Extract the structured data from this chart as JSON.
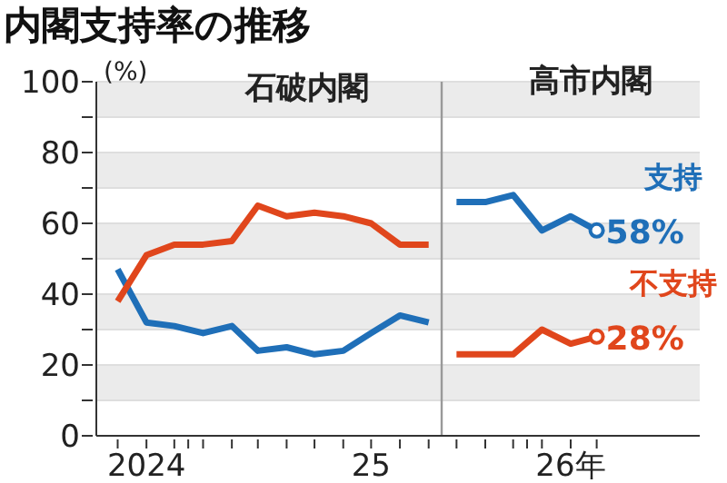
{
  "chart_data": {
    "type": "line",
    "title": "内閣支持率の推移",
    "ylabel": "(%)",
    "annotations": [
      "石破内閣",
      "高市内閣"
    ],
    "series": [
      {
        "color": "#1f6fb8",
        "x": [
          "2024-10",
          "2024-11",
          "2024-12",
          "2025-01",
          "2025-02",
          "2025-03",
          "2025-04",
          "2025-05",
          "2025-06",
          "2025-07",
          "2025-08",
          "2025-09"
        ],
        "values": [
          47,
          32,
          31,
          29,
          31,
          24,
          25,
          23,
          24,
          29,
          34,
          32
        ]
      },
      {
        "color": "#e0461c",
        "x": [
          "2024-10",
          "2024-11",
          "2024-12",
          "2025-01",
          "2025-02",
          "2025-03",
          "2025-04",
          "2025-05",
          "2025-06",
          "2025-07",
          "2025-08",
          "2025-09"
        ],
        "values": [
          38,
          51,
          54,
          54,
          55,
          65,
          62,
          63,
          62,
          60,
          54,
          54
        ]
      },
      {
        "name": "支持",
        "color": "#1f6fb8",
        "x": [
          "2025-10",
          "2025-11",
          "2025-12",
          "2026-01",
          "2026-02",
          "2026-03"
        ],
        "values": [
          66,
          66,
          68,
          58,
          62,
          58
        ],
        "value_labels": [
          null,
          null,
          null,
          null,
          null,
          "58%"
        ]
      },
      {
        "name": "不支持",
        "color": "#e0461c",
        "x": [
          "2025-10",
          "2025-11",
          "2025-12",
          "2026-01",
          "2026-02",
          "2026-03"
        ],
        "values": [
          23,
          23,
          23,
          30,
          26,
          28
        ],
        "value_labels": [
          null,
          null,
          null,
          null,
          null,
          "28%"
        ]
      }
    ],
    "xlim": [
      "2024-09-08",
      "2026-06-20"
    ],
    "xticks": [
      {
        "value": "2024-10",
        "label": null
      },
      {
        "value": "2024-11",
        "label": "2024"
      },
      {
        "value": "2024-12",
        "label": null
      },
      {
        "value": "2024-12-16",
        "label": null
      },
      {
        "value": "2025-01",
        "label": null
      },
      {
        "value": "2025-02",
        "label": null
      },
      {
        "value": "2025-03",
        "label": null
      },
      {
        "value": "2025-04",
        "label": null
      },
      {
        "value": "2025-05",
        "label": null
      },
      {
        "value": "2025-06",
        "label": null
      },
      {
        "value": "2025-07",
        "label": "25"
      },
      {
        "value": "2025-08",
        "label": null
      },
      {
        "value": "2025-09",
        "label": null
      },
      {
        "value": "2025-10",
        "label": null
      },
      {
        "value": "2025-11",
        "label": null
      },
      {
        "value": "2025-12",
        "label": null
      },
      {
        "value": "2025-12-16",
        "label": null
      },
      {
        "value": "2026-01",
        "label": null
      },
      {
        "value": "2026-02",
        "label": "26年"
      },
      {
        "value": "2026-03",
        "label": null
      }
    ],
    "ylim": [
      0,
      100
    ],
    "yticks": [
      0,
      {
        "value": 10,
        "label": null
      },
      20,
      {
        "value": 30,
        "label": null
      },
      40,
      {
        "value": 50,
        "label": null
      },
      60,
      {
        "value": 70,
        "label": null
      },
      80,
      {
        "value": 90,
        "label": null
      },
      100
    ],
    "ref_lines": [
      {
        "axis": "x",
        "value": "2025-09-15",
        "label": null,
        "color": "#999999"
      }
    ],
    "grid": "y"
  }
}
